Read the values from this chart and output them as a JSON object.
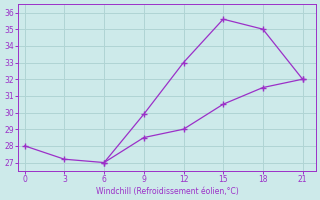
{
  "line1_x": [
    0,
    3,
    6,
    9,
    12,
    15,
    18,
    21
  ],
  "line1_y": [
    28,
    27.2,
    27.0,
    29.9,
    33.0,
    35.6,
    35.0,
    32.0
  ],
  "line2_x": [
    6,
    9,
    12,
    15,
    18,
    21
  ],
  "line2_y": [
    27.0,
    28.5,
    29.0,
    30.5,
    31.5,
    32.0
  ],
  "xlabel": "Windchill (Refroidissement éolien,°C)",
  "xlim": [
    -0.5,
    22
  ],
  "ylim": [
    26.5,
    36.5
  ],
  "xticks": [
    0,
    3,
    6,
    9,
    12,
    15,
    18,
    21
  ],
  "yticks": [
    27,
    28,
    29,
    30,
    31,
    32,
    33,
    34,
    35,
    36
  ],
  "line_color": "#9B30C8",
  "bg_color": "#cdeaea",
  "grid_color": "#b0d4d4"
}
